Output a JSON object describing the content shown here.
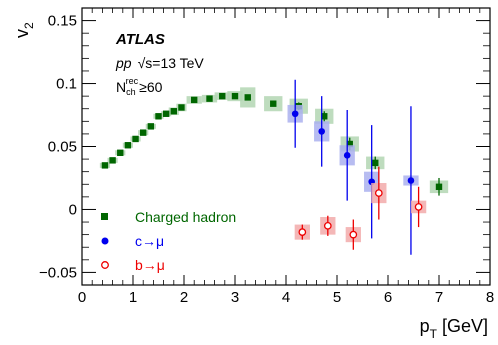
{
  "chart_data": {
    "type": "scatter",
    "xlabel": "p",
    "xlabel_sub": "T",
    "xlabel_unit": "[GeV]",
    "ylabel": "v",
    "ylabel_sub": "2",
    "xlim": [
      0,
      8
    ],
    "ylim": [
      -0.06,
      0.16
    ],
    "x_ticks": [
      0,
      1,
      2,
      3,
      4,
      5,
      6,
      7,
      8
    ],
    "y_ticks": [
      -0.05,
      0,
      0.05,
      0.1,
      0.15
    ],
    "y_tick_labels": [
      "−0.05",
      "0",
      "0.05",
      "0.1",
      "0.15"
    ],
    "annotations": {
      "experiment": "ATLAS",
      "system": "pp",
      "energy": "√s=13 TeV",
      "multiplicity_prefix": "N",
      "multiplicity_sub": "ch",
      "multiplicity_sup": "rec",
      "multiplicity_cut": "≥60"
    },
    "legend_position": "bottom-left",
    "series": [
      {
        "name": "Charged hadron",
        "color": "#006600",
        "syst_color": "#b3d6b3",
        "marker": "square",
        "x": [
          0.45,
          0.6,
          0.75,
          0.9,
          1.05,
          1.2,
          1.35,
          1.5,
          1.65,
          1.8,
          1.95,
          2.2,
          2.5,
          2.75,
          3.0,
          3.25,
          3.75,
          4.25,
          4.75,
          5.25,
          5.75,
          7.0
        ],
        "y": [
          0.035,
          0.039,
          0.045,
          0.051,
          0.056,
          0.061,
          0.066,
          0.074,
          0.076,
          0.078,
          0.081,
          0.087,
          0.088,
          0.09,
          0.09,
          0.089,
          0.084,
          0.082,
          0.074,
          0.052,
          0.037,
          0.018
        ],
        "stat": [
          0.001,
          0.001,
          0.001,
          0.001,
          0.001,
          0.001,
          0.001,
          0.001,
          0.001,
          0.001,
          0.001,
          0.001,
          0.001,
          0.001,
          0.001,
          0.001,
          0.002,
          0.003,
          0.004,
          0.005,
          0.005,
          0.007
        ],
        "syst_hw": [
          0.1,
          0.1,
          0.1,
          0.1,
          0.1,
          0.1,
          0.1,
          0.1,
          0.1,
          0.1,
          0.1,
          0.15,
          0.15,
          0.15,
          0.15,
          0.15,
          0.18,
          0.18,
          0.18,
          0.18,
          0.18,
          0.18
        ],
        "syst": [
          0.002,
          0.002,
          0.002,
          0.002,
          0.002,
          0.002,
          0.002,
          0.002,
          0.002,
          0.003,
          0.003,
          0.003,
          0.003,
          0.003,
          0.004,
          0.008,
          0.006,
          0.006,
          0.006,
          0.006,
          0.005,
          0.005
        ]
      },
      {
        "name": "c→μ",
        "color": "#0000ee",
        "syst_color": "#aab0ee",
        "marker": "circle",
        "x": [
          4.18,
          4.7,
          5.2,
          5.68,
          6.45
        ],
        "y": [
          0.076,
          0.062,
          0.043,
          0.022,
          0.023
        ],
        "stat": [
          0.027,
          0.028,
          0.036,
          0.045,
          0.059
        ],
        "syst_hw": [
          0.15,
          0.15,
          0.15,
          0.15,
          0.15
        ],
        "syst": [
          0.007,
          0.008,
          0.008,
          0.008,
          0.004
        ]
      },
      {
        "name": "b→μ",
        "color": "#ee0000",
        "syst_color": "#f2aaaa",
        "marker": "open-circle",
        "x": [
          4.32,
          4.82,
          5.32,
          5.82,
          6.6
        ],
        "y": [
          -0.018,
          -0.013,
          -0.02,
          0.013,
          0.002
        ],
        "stat": [
          0.006,
          0.008,
          0.012,
          0.021,
          0.016
        ],
        "syst_hw": [
          0.15,
          0.15,
          0.15,
          0.15,
          0.15
        ],
        "syst": [
          0.006,
          0.007,
          0.006,
          0.008,
          0.005
        ]
      }
    ]
  }
}
